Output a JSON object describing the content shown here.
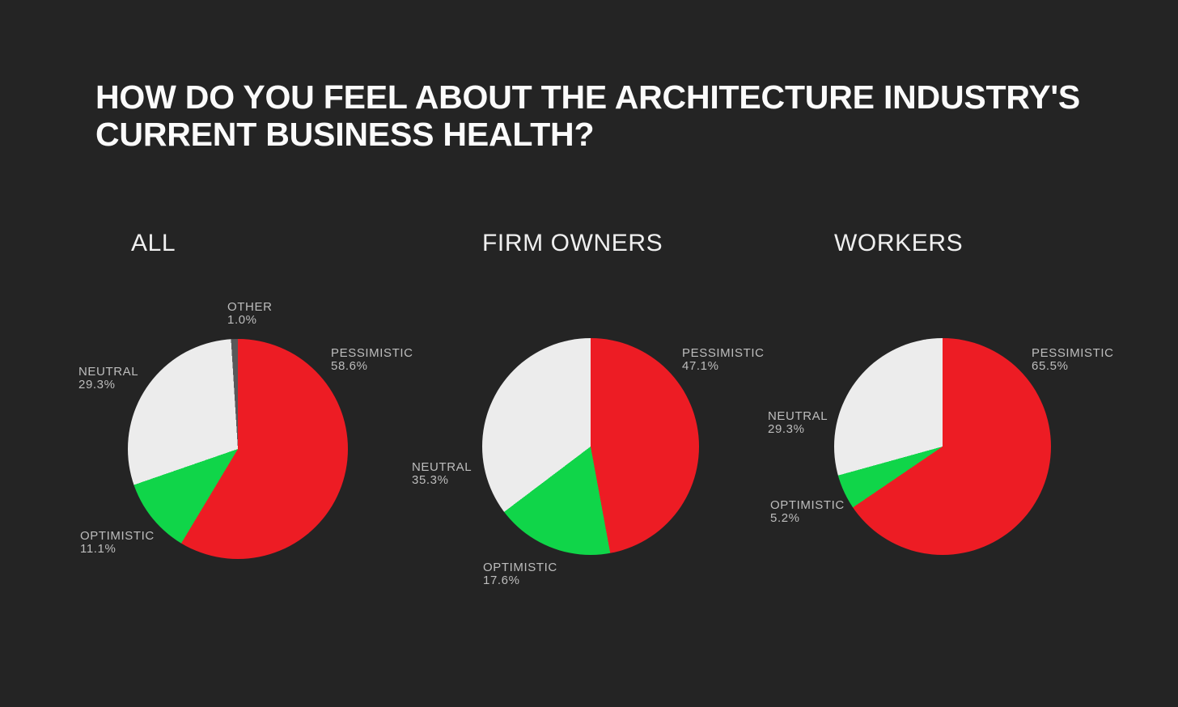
{
  "title": {
    "full": "HOW DO YOU FEEL ABOUT THE ARCHITECTURE INDUSTRY'S CURRENT BUSINESS HEALTH?",
    "line1": "HOW DO YOU FEEL ABOUT THE ARCHITECTURE INDUSTRY'S",
    "line2": "CURRENT BUSINESS HEALTH?"
  },
  "colors": {
    "background": "#242424",
    "title_text": "#FBFBFB",
    "label_text": "#BDBDBD",
    "pessimistic": "#ED1C24",
    "optimistic": "#10D549",
    "neutral": "#ECECEC",
    "other": "#58585A"
  },
  "chart_data": [
    {
      "type": "pie",
      "title": "ALL",
      "slice_order": "clockwise from 12 o'clock",
      "legend": "none (direct slice labels)",
      "slices": [
        {
          "label": "PESSIMISTIC",
          "value": 58.6,
          "pct": "58.6%",
          "color": "#ED1C24"
        },
        {
          "label": "OPTIMISTIC",
          "value": 11.1,
          "pct": "11.1%",
          "color": "#10D549"
        },
        {
          "label": "NEUTRAL",
          "value": 29.3,
          "pct": "29.3%",
          "color": "#ECECEC"
        },
        {
          "label": "OTHER",
          "value": 1.0,
          "pct": "1.0%",
          "color": "#58585A"
        }
      ]
    },
    {
      "type": "pie",
      "title": "FIRM OWNERS",
      "slice_order": "clockwise from 12 o'clock",
      "legend": "none (direct slice labels)",
      "slices": [
        {
          "label": "PESSIMISTIC",
          "value": 47.1,
          "pct": "47.1%",
          "color": "#ED1C24"
        },
        {
          "label": "OPTIMISTIC",
          "value": 17.6,
          "pct": "17.6%",
          "color": "#10D549"
        },
        {
          "label": "NEUTRAL",
          "value": 35.3,
          "pct": "35.3%",
          "color": "#ECECEC"
        }
      ]
    },
    {
      "type": "pie",
      "title": "WORKERS",
      "slice_order": "clockwise from 12 o'clock",
      "legend": "none (direct slice labels)",
      "slices": [
        {
          "label": "PESSIMISTIC",
          "value": 65.5,
          "pct": "65.5%",
          "color": "#ED1C24"
        },
        {
          "label": "OPTIMISTIC",
          "value": 5.2,
          "pct": "5.2%",
          "color": "#10D549"
        },
        {
          "label": "NEUTRAL",
          "value": 29.3,
          "pct": "29.3%",
          "color": "#ECECEC"
        }
      ]
    }
  ]
}
